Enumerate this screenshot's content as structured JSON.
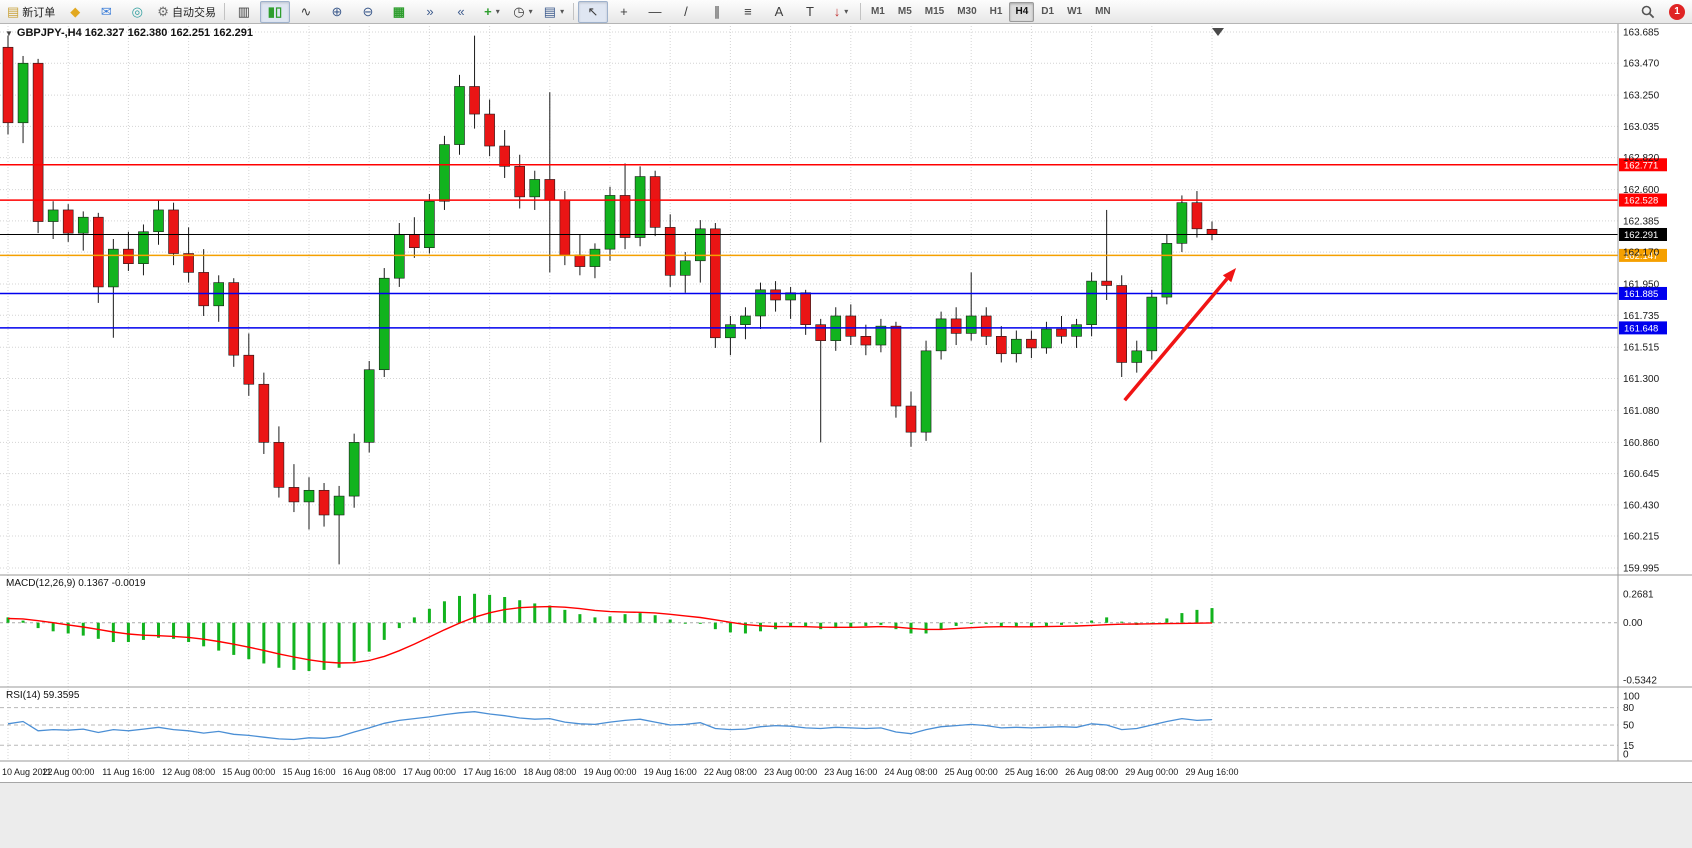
{
  "toolbar": {
    "new_order_label": "新订单",
    "autotrading_label": "自动交易",
    "timeframes": [
      "M1",
      "M5",
      "M15",
      "M30",
      "H1",
      "H4",
      "D1",
      "W1",
      "MN"
    ],
    "active_timeframe": "H4",
    "notification_count": "1"
  },
  "icons": {
    "new_order": "▤",
    "funnel": "◆",
    "chat": "✉",
    "community": "◎",
    "autotrading": "⚙",
    "bars": "▥",
    "candles": "▮▯",
    "line_chart": "∿",
    "zoom_in": "⊕",
    "zoom_out": "⊖",
    "tile": "▦",
    "autoscroll": "»",
    "shift": "«",
    "indicators": "+",
    "periods": "◷",
    "templates": "▤",
    "cursor": "↖",
    "crosshair": "+",
    "hline": "—",
    "trendline": "/",
    "channel": "∥",
    "fibo": "≡",
    "text": "A",
    "label": "T",
    "arrows": "↓",
    "dropdown": "▾"
  },
  "chart": {
    "symbol": "GBPJPY-",
    "timeframe": "H4",
    "title": "GBPJPY-,H4 162.327 162.380 162.251 162.291",
    "ohlc": {
      "open": "162.327",
      "high": "162.380",
      "low": "162.251",
      "close": "162.291"
    }
  },
  "indicators": {
    "macd_label": "MACD(12,26,9) 0.1367 -0.0019",
    "rsi_label": "RSI(14) 59.3595"
  },
  "chart_data": [
    {
      "type": "candlestick",
      "title": "GBPJPY-,H4",
      "ylim": [
        159.995,
        163.685
      ],
      "y_ticks": [
        163.685,
        163.47,
        163.25,
        163.035,
        162.82,
        162.6,
        162.385,
        162.17,
        161.95,
        161.735,
        161.515,
        161.3,
        161.08,
        160.86,
        160.645,
        160.43,
        160.215,
        159.995
      ],
      "x_labels": [
        "10 Aug 2022",
        "11 Aug 00:00",
        "11 Aug 16:00",
        "12 Aug 08:00",
        "15 Aug 00:00",
        "15 Aug 16:00",
        "16 Aug 08:00",
        "17 Aug 00:00",
        "17 Aug 16:00",
        "18 Aug 08:00",
        "19 Aug 00:00",
        "19 Aug 16:00",
        "22 Aug 08:00",
        "23 Aug 00:00",
        "23 Aug 16:00",
        "24 Aug 08:00",
        "25 Aug 00:00",
        "25 Aug 16:00",
        "26 Aug 08:00",
        "29 Aug 00:00",
        "29 Aug 16:00"
      ],
      "label_every": 4,
      "colors": {
        "bull": "#12b31e",
        "bear": "#ea1515",
        "wick": "#1a1a1a"
      },
      "candles": [
        [
          163.58,
          163.66,
          162.98,
          163.06
        ],
        [
          163.06,
          163.52,
          162.92,
          163.47
        ],
        [
          163.47,
          163.5,
          162.3,
          162.38
        ],
        [
          162.38,
          162.52,
          162.26,
          162.46
        ],
        [
          162.46,
          162.5,
          162.24,
          162.3
        ],
        [
          162.3,
          162.45,
          162.18,
          162.41
        ],
        [
          162.41,
          162.44,
          161.82,
          161.93
        ],
        [
          161.93,
          162.26,
          161.58,
          162.19
        ],
        [
          162.19,
          162.31,
          162.04,
          162.09
        ],
        [
          162.09,
          162.36,
          162.01,
          162.31
        ],
        [
          162.31,
          162.53,
          162.22,
          162.46
        ],
        [
          162.46,
          162.51,
          162.08,
          162.16
        ],
        [
          162.16,
          162.34,
          161.96,
          162.03
        ],
        [
          162.03,
          162.19,
          161.73,
          161.8
        ],
        [
          161.8,
          162.01,
          161.69,
          161.96
        ],
        [
          161.96,
          161.99,
          161.38,
          161.46
        ],
        [
          161.46,
          161.61,
          161.18,
          161.26
        ],
        [
          161.26,
          161.34,
          160.78,
          160.86
        ],
        [
          160.86,
          160.97,
          160.48,
          160.55
        ],
        [
          160.55,
          160.71,
          160.38,
          160.45
        ],
        [
          160.45,
          160.62,
          160.26,
          160.53
        ],
        [
          160.53,
          160.58,
          160.28,
          160.36
        ],
        [
          160.36,
          160.56,
          160.02,
          160.49
        ],
        [
          160.49,
          160.92,
          160.41,
          160.86
        ],
        [
          160.86,
          161.42,
          160.79,
          161.36
        ],
        [
          161.36,
          162.06,
          161.31,
          161.99
        ],
        [
          161.99,
          162.37,
          161.93,
          162.29
        ],
        [
          162.29,
          162.41,
          162.13,
          162.2
        ],
        [
          162.2,
          162.57,
          162.16,
          162.52
        ],
        [
          162.52,
          162.97,
          162.46,
          162.91
        ],
        [
          162.91,
          163.39,
          162.84,
          163.31
        ],
        [
          163.31,
          163.66,
          163.02,
          163.12
        ],
        [
          163.12,
          163.22,
          162.83,
          162.9
        ],
        [
          162.9,
          163.01,
          162.68,
          162.76
        ],
        [
          162.76,
          162.84,
          162.47,
          162.55
        ],
        [
          162.55,
          162.73,
          162.46,
          162.67
        ],
        [
          162.67,
          163.27,
          162.03,
          162.53
        ],
        [
          162.53,
          162.59,
          162.08,
          162.15
        ],
        [
          162.15,
          162.29,
          162.01,
          162.07
        ],
        [
          162.07,
          162.23,
          161.99,
          162.19
        ],
        [
          162.19,
          162.62,
          162.11,
          162.56
        ],
        [
          162.56,
          162.78,
          162.19,
          162.27
        ],
        [
          162.27,
          162.76,
          162.21,
          162.69
        ],
        [
          162.69,
          162.73,
          162.28,
          162.34
        ],
        [
          162.34,
          162.43,
          161.93,
          162.01
        ],
        [
          162.01,
          162.17,
          161.89,
          162.11
        ],
        [
          162.11,
          162.39,
          161.96,
          162.33
        ],
        [
          162.33,
          162.37,
          161.51,
          161.58
        ],
        [
          161.58,
          161.73,
          161.46,
          161.67
        ],
        [
          161.67,
          161.79,
          161.57,
          161.73
        ],
        [
          161.73,
          161.96,
          161.64,
          161.91
        ],
        [
          161.91,
          161.97,
          161.76,
          161.84
        ],
        [
          161.84,
          161.93,
          161.71,
          161.89
        ],
        [
          161.89,
          161.91,
          161.6,
          161.67
        ],
        [
          161.67,
          161.71,
          160.86,
          161.56
        ],
        [
          161.56,
          161.79,
          161.49,
          161.73
        ],
        [
          161.73,
          161.81,
          161.53,
          161.59
        ],
        [
          161.59,
          161.67,
          161.46,
          161.53
        ],
        [
          161.53,
          161.71,
          161.48,
          161.66
        ],
        [
          161.66,
          161.69,
          161.03,
          161.11
        ],
        [
          161.11,
          161.21,
          160.83,
          160.93
        ],
        [
          160.93,
          161.56,
          160.87,
          161.49
        ],
        [
          161.49,
          161.76,
          161.43,
          161.71
        ],
        [
          161.71,
          161.79,
          161.53,
          161.61
        ],
        [
          161.61,
          162.03,
          161.56,
          161.73
        ],
        [
          161.73,
          161.79,
          161.53,
          161.59
        ],
        [
          161.59,
          161.66,
          161.41,
          161.47
        ],
        [
          161.47,
          161.63,
          161.41,
          161.57
        ],
        [
          161.57,
          161.63,
          161.44,
          161.51
        ],
        [
          161.51,
          161.69,
          161.47,
          161.64
        ],
        [
          161.64,
          161.73,
          161.54,
          161.59
        ],
        [
          161.59,
          161.71,
          161.51,
          161.67
        ],
        [
          161.67,
          162.03,
          161.59,
          161.97
        ],
        [
          161.97,
          162.46,
          161.84,
          161.94
        ],
        [
          161.94,
          162.01,
          161.31,
          161.41
        ],
        [
          161.41,
          161.56,
          161.34,
          161.49
        ],
        [
          161.49,
          161.91,
          161.43,
          161.86
        ],
        [
          161.86,
          162.29,
          161.81,
          162.23
        ],
        [
          162.23,
          162.56,
          162.17,
          162.51
        ],
        [
          162.51,
          162.59,
          162.27,
          162.33
        ],
        [
          162.327,
          162.38,
          162.251,
          162.291
        ]
      ],
      "hlines": [
        {
          "value": 162.771,
          "label": "162.771",
          "color": "#ff0000",
          "kind": "resistance"
        },
        {
          "value": 162.528,
          "label": "162.528",
          "color": "#ff0000",
          "kind": "resistance"
        },
        {
          "value": 162.291,
          "label": "162.291",
          "color": "#000000",
          "kind": "current-price"
        },
        {
          "value": 162.147,
          "label": "162.147",
          "color": "#f5a000",
          "kind": "pivot"
        },
        {
          "value": 161.885,
          "label": "161.885",
          "color": "#0000ee",
          "kind": "support"
        },
        {
          "value": 161.648,
          "label": "161.648",
          "color": "#0000ee",
          "kind": "support"
        }
      ],
      "annotations": [
        {
          "type": "arrow",
          "from_index": 74.2,
          "from_price": 161.15,
          "to_index": 81.6,
          "to_price": 162.06,
          "color": "#f01414"
        }
      ]
    },
    {
      "type": "macd",
      "y_ticks": [
        {
          "v": 0.2681,
          "label": "0.2681"
        },
        {
          "v": 0,
          "label": "0.00"
        },
        {
          "v": -0.5342,
          "label": "-0.5342"
        }
      ],
      "histogram": [
        0.05,
        0.02,
        -0.05,
        -0.08,
        -0.1,
        -0.12,
        -0.15,
        -0.18,
        -0.18,
        -0.16,
        -0.14,
        -0.15,
        -0.18,
        -0.22,
        -0.26,
        -0.3,
        -0.34,
        -0.38,
        -0.42,
        -0.44,
        -0.45,
        -0.44,
        -0.42,
        -0.36,
        -0.27,
        -0.16,
        -0.05,
        0.05,
        0.13,
        0.2,
        0.25,
        0.27,
        0.26,
        0.24,
        0.21,
        0.18,
        0.16,
        0.12,
        0.08,
        0.05,
        0.06,
        0.08,
        0.09,
        0.07,
        0.03,
        0.0,
        -0.01,
        -0.06,
        -0.09,
        -0.1,
        -0.08,
        -0.06,
        -0.04,
        -0.04,
        -0.06,
        -0.05,
        -0.04,
        -0.03,
        -0.02,
        -0.06,
        -0.1,
        -0.1,
        -0.06,
        -0.03,
        -0.01,
        -0.01,
        -0.03,
        -0.04,
        -0.04,
        -0.03,
        -0.02,
        -0.01,
        0.02,
        0.05,
        0.01,
        -0.02,
        0.0,
        0.04,
        0.09,
        0.12,
        0.1367
      ],
      "signal": [
        0.04,
        0.036,
        0.019,
        0.0,
        -0.02,
        -0.04,
        -0.062,
        -0.086,
        -0.105,
        -0.116,
        -0.121,
        -0.127,
        -0.137,
        -0.154,
        -0.175,
        -0.2,
        -0.228,
        -0.258,
        -0.291,
        -0.32,
        -0.346,
        -0.365,
        -0.376,
        -0.373,
        -0.352,
        -0.314,
        -0.261,
        -0.199,
        -0.133,
        -0.066,
        -0.003,
        0.052,
        0.093,
        0.123,
        0.14,
        0.148,
        0.151,
        0.145,
        0.132,
        0.115,
        0.104,
        0.099,
        0.097,
        0.092,
        0.079,
        0.064,
        0.049,
        0.027,
        0.004,
        -0.017,
        -0.029,
        -0.036,
        -0.036,
        -0.037,
        -0.042,
        -0.043,
        -0.043,
        -0.04,
        -0.036,
        -0.041,
        -0.053,
        -0.062,
        -0.062,
        -0.055,
        -0.046,
        -0.039,
        -0.037,
        -0.038,
        -0.038,
        -0.036,
        -0.033,
        -0.03,
        -0.025,
        -0.018,
        -0.014,
        -0.012,
        -0.01,
        -0.008,
        -0.006,
        -0.004,
        -0.0019
      ],
      "colors": {
        "histogram": "#12b31e",
        "signal": "#ff0000"
      }
    },
    {
      "type": "rsi",
      "ylim": [
        0,
        100
      ],
      "y_ticks": [
        100,
        80,
        50,
        15,
        0
      ],
      "levels": [
        80,
        50,
        15
      ],
      "color": "#4b8fd5",
      "values": [
        52,
        56,
        40,
        42,
        41,
        43,
        37,
        42,
        40,
        43,
        46,
        42,
        40,
        36,
        39,
        34,
        32,
        29,
        26,
        25,
        28,
        27,
        30,
        38,
        45,
        53,
        58,
        61,
        64,
        68,
        71,
        73,
        69,
        66,
        62,
        60,
        61,
        55,
        52,
        51,
        55,
        58,
        60,
        55,
        50,
        51,
        54,
        44,
        42,
        43,
        47,
        49,
        48,
        45,
        44,
        46,
        45,
        44,
        45,
        38,
        35,
        42,
        47,
        49,
        51,
        49,
        45,
        46,
        45,
        46,
        47,
        46,
        52,
        50,
        42,
        44,
        50,
        56,
        61,
        58,
        59.36
      ]
    }
  ]
}
